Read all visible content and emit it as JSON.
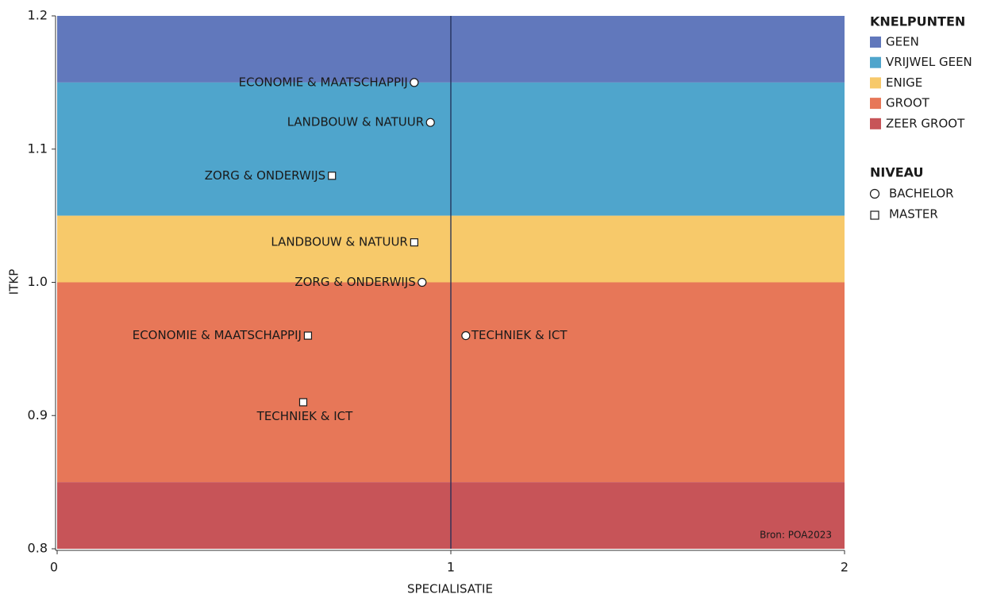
{
  "chart_data": {
    "type": "scatter",
    "xlabel": "SPECIALISATIE",
    "ylabel": "ITKP",
    "xlim": [
      0,
      2
    ],
    "ylim": [
      0.8,
      1.2
    ],
    "xticks": [
      0,
      1,
      2
    ],
    "yticks": [
      0.8,
      0.9,
      {
        "value": 1,
        "label": "1.0"
      },
      1.1,
      1.2
    ],
    "reference_x": 1,
    "source": "Bron: POA2023",
    "bands_title": "KNELPUNTEN",
    "bands": [
      {
        "name": "GEEN",
        "color": "#6178bc",
        "range": [
          1.15,
          1.2
        ]
      },
      {
        "name": "VRIJWEL GEEN",
        "color": "#4fa5cc",
        "range": [
          1.05,
          1.15
        ]
      },
      {
        "name": "ENIGE",
        "color": "#f7c96a",
        "range": [
          1.0,
          1.05
        ]
      },
      {
        "name": "GROOT",
        "color": "#e77758",
        "range": [
          0.85,
          1.0
        ]
      },
      {
        "name": "ZEER GROOT",
        "color": "#c75458",
        "range": [
          0.8,
          0.85
        ]
      }
    ],
    "series_title": "NIVEAU",
    "series": [
      {
        "name": "BACHELOR",
        "marker": "circle",
        "labels": [
          "ECONOMIE & MAATSCHAPPIJ",
          "LANDBOUW & NATUUR",
          "ZORG & ONDERWIJS",
          "TECHNIEK & ICT"
        ],
        "x": [
          0.907,
          0.948,
          0.927,
          1.038
        ],
        "y": [
          1.15,
          1.12,
          1.0,
          0.96
        ]
      },
      {
        "name": "MASTER",
        "marker": "square",
        "labels": [
          "ZORG & ONDERWIJS",
          "LANDBOUW & NATUUR",
          "ECONOMIE & MAATSCHAPPIJ",
          "TECHNIEK & ICT"
        ],
        "x": [
          0.698,
          0.907,
          0.637,
          0.625
        ],
        "y": [
          1.08,
          1.03,
          0.96,
          0.91
        ]
      }
    ]
  }
}
